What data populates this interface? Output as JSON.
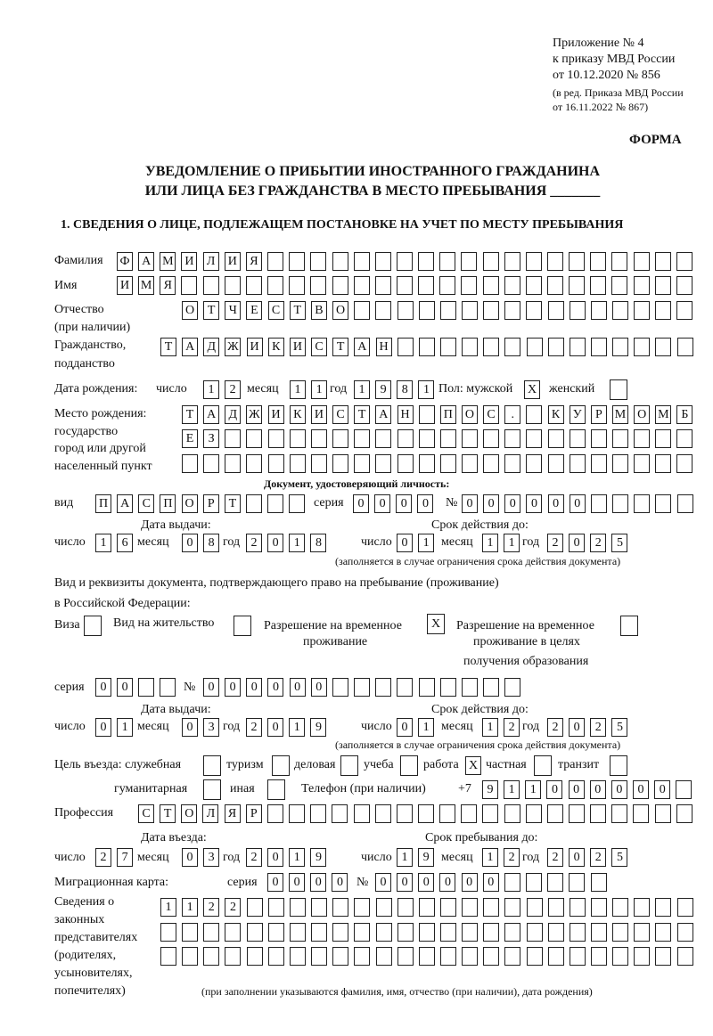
{
  "header": {
    "appendix": [
      "Приложение № 4",
      "к приказу МВД России",
      "от 10.12.2020 № 856"
    ],
    "amendment": [
      "(в ред. Приказа МВД России",
      "от 16.11.2022 № 867)"
    ],
    "forma": "ФОРМА",
    "title_line1": "УВЕДОМЛЕНИЕ О ПРИБЫТИИ ИНОСТРАННОГО ГРАЖДАНИНА",
    "title_line2": "ИЛИ ЛИЦА БЕЗ ГРАЖДАНСТВА В МЕСТО ПРЕБЫВАНИЯ _______",
    "section1": "1. СВЕДЕНИЯ О ЛИЦЕ, ПОДЛЕЖАЩЕМ ПОСТАНОВКЕ НА УЧЕТ ПО МЕСТУ ПРЕБЫВАНИЯ"
  },
  "labels": {
    "surname": "Фамилия",
    "name": "Имя",
    "patronymic": "Отчество",
    "patronymic2": "(при наличии)",
    "citizenship": "Гражданство,",
    "citizenship2": "подданство",
    "dob": "Дата рождения:",
    "day": "число",
    "month": "месяц",
    "year": "год",
    "sex": "Пол: мужской",
    "female": "женский",
    "pob1": "Место рождения:",
    "pob2": "государство",
    "pob3": "город или другой",
    "pob4": "населенный пункт",
    "id_doc": "Документ, удостоверяющий личность:",
    "kind": "вид",
    "series": "серия",
    "number": "№",
    "issue_date": "Дата выдачи:",
    "valid_until": "Срок действия до:",
    "validity_note": "(заполняется в случае ограничения срока действия документа)",
    "stay_doc1": "Вид и реквизиты документа, подтверждающего право на пребывание (проживание)",
    "stay_doc2": "в Российской Федерации:",
    "visa": "Виза",
    "residence": "Вид на жительство",
    "temp1": "Разрешение на временное",
    "temp2": "проживание",
    "edu1": "Разрешение на временное",
    "edu2": "проживание в целях",
    "edu3": "получения образования",
    "purpose": "Цель въезда: служебная",
    "tourism": "туризм",
    "business": "деловая",
    "study": "учеба",
    "work": "работа",
    "private": "частная",
    "transit": "транзит",
    "humanitarian": "гуманитарная",
    "other": "иная",
    "phone": "Телефон (при наличии)",
    "phone_prefix": "+7",
    "profession": "Профессия",
    "entry_date": "Дата въезда:",
    "stay_until": "Срок пребывания до:",
    "migration_card": "Миграционная карта:",
    "reps1": "Сведения о",
    "reps2": "законных",
    "reps3": "представителях",
    "reps4": "(родителях,",
    "reps5": "усыновителях,",
    "reps6": "попечителях)",
    "reps_note": "(при заполнении указываются фамилия, имя, отчество (при наличии), дата рождения)"
  },
  "fields": {
    "surname": "ФАМИЛИЯ",
    "name": "ИМЯ",
    "patronymic": "ОТЧЕСТВО",
    "citizenship": "ТАДЖИКИСТАН",
    "dob_day": "12",
    "dob_month": "11",
    "dob_year": "1981",
    "sex_male": "X",
    "sex_female": "",
    "pob_row1": "ТАДЖИКИСТАН ПОС. КУРМОМБ",
    "pob_row2": "ЕЗ",
    "pob_row3": "",
    "id_kind": "ПАСПОРТ",
    "id_series": "0000",
    "id_number": "000000",
    "id_issue_day": "16",
    "id_issue_month": "08",
    "id_issue_year": "2018",
    "id_valid_day": "01",
    "id_valid_month": "11",
    "id_valid_year": "2025",
    "visa": "",
    "residence": "",
    "temp_residence": "X",
    "edu_residence": "",
    "stay_series": "00",
    "stay_number": "000000",
    "stay_issue_day": "01",
    "stay_issue_month": "03",
    "stay_issue_year": "2019",
    "stay_valid_day": "01",
    "stay_valid_month": "12",
    "stay_valid_year": "2025",
    "purpose_official": "",
    "purpose_tourism": "",
    "purpose_business": "",
    "purpose_study": "",
    "purpose_work": "X",
    "purpose_private": "",
    "purpose_transit": "",
    "purpose_humanitarian": "",
    "purpose_other": "",
    "phone": "911000000",
    "profession": "СТОЛЯР",
    "entry_day": "27",
    "entry_month": "03",
    "entry_year": "2019",
    "stay_day": "19",
    "stay_month": "12",
    "stay_year": "2025",
    "mig_series": "0000",
    "mig_number": "000000",
    "reps_row1": "1122",
    "reps_row2": "",
    "reps_row3": ""
  }
}
